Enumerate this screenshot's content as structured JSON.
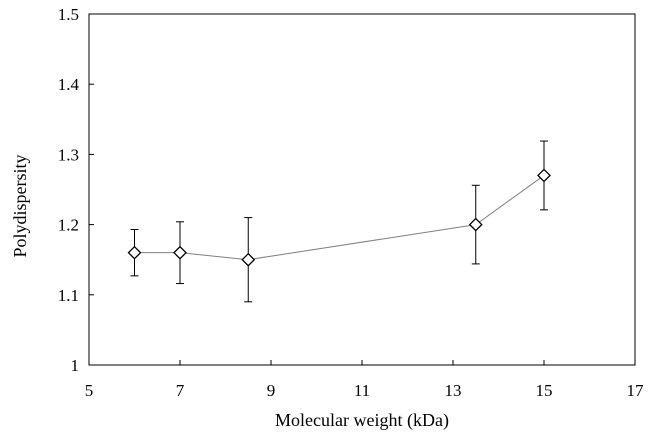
{
  "chart_data": {
    "type": "line",
    "title": "",
    "xlabel": "Molecular weight (kDa)",
    "ylabel": "Polydispersity",
    "xlim": [
      5,
      17
    ],
    "ylim": [
      1,
      1.5
    ],
    "x_ticks": [
      5,
      7,
      9,
      11,
      13,
      15,
      17
    ],
    "y_ticks": [
      1,
      1.1,
      1.2,
      1.3,
      1.4,
      1.5
    ],
    "x_tick_labels": [
      "5",
      "7",
      "9",
      "11",
      "13",
      "15",
      "17"
    ],
    "y_tick_labels": [
      "1",
      "1.1",
      "1.2",
      "1.3",
      "1.4",
      "1.5"
    ],
    "grid": false,
    "legend": "none",
    "marker": "open-diamond",
    "colors": {
      "line": "#808080",
      "marker": "#000000",
      "errorbar": "#000000",
      "axis": "#000000"
    },
    "series": [
      {
        "x": [
          6,
          7,
          8.5,
          13.5,
          15
        ],
        "y": [
          1.16,
          1.16,
          1.15,
          1.2,
          1.27
        ],
        "error_low": [
          1.127,
          1.116,
          1.09,
          1.144,
          1.221
        ],
        "error_high": [
          1.193,
          1.204,
          1.21,
          1.256,
          1.319
        ]
      }
    ]
  }
}
